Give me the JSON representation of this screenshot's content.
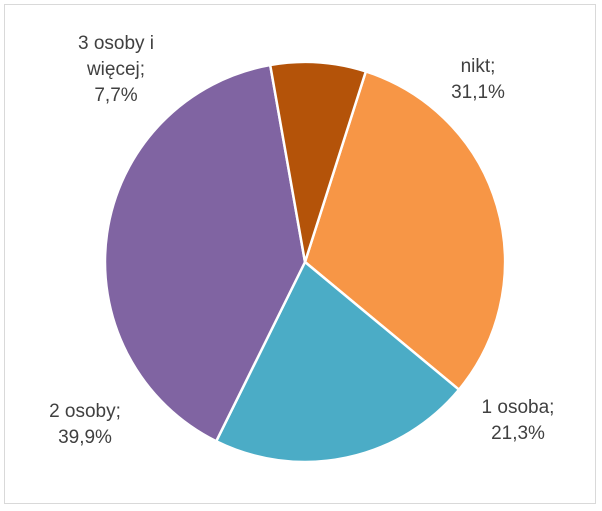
{
  "chart_data": {
    "type": "pie",
    "categories": [
      "nikt",
      "1 osoba",
      "2 osoby",
      "3 osoby i więcej"
    ],
    "values": [
      31.1,
      21.3,
      39.9,
      7.7
    ],
    "colors": [
      "#f79646",
      "#4bacc6",
      "#8064a2",
      "#b45309"
    ],
    "labels": [
      [
        "nikt;",
        "31,1%"
      ],
      [
        "1 osoba;",
        "21,3%"
      ],
      [
        "2 osoby;",
        "39,9%"
      ],
      [
        "3 osoby i",
        "więcej;",
        "7,7%"
      ]
    ]
  }
}
